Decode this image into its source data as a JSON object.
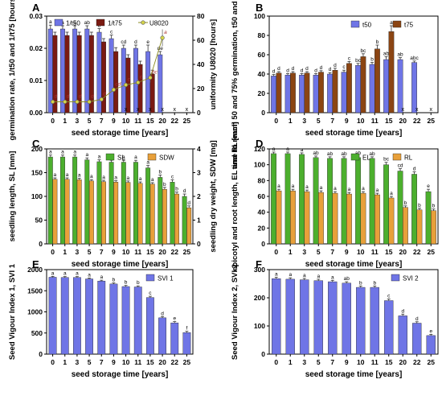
{
  "figure": {
    "x_ticks": [
      "0",
      "1",
      "3",
      "5",
      "7",
      "9",
      "10",
      "11",
      "15",
      "20",
      "22",
      "25"
    ],
    "xlabel": "seed storage time [years]"
  },
  "colors": {
    "blue": "#6f75e6",
    "dark_red": "#7a1a12",
    "brown": "#8b4513",
    "green": "#4caf2e",
    "orange": "#e8a03a",
    "olive_marker": "#d4d44a"
  },
  "chart_data": [
    {
      "panel": "A",
      "type": "bar",
      "categories": [
        "0",
        "1",
        "3",
        "5",
        "7",
        "9",
        "10",
        "11",
        "15",
        "20",
        "22",
        "25"
      ],
      "series": [
        {
          "name": "1/t50",
          "axis": "left",
          "values": [
            0.026,
            0.026,
            0.026,
            0.026,
            0.025,
            0.023,
            0.02,
            0.02,
            0.019,
            0.018,
            0,
            0
          ],
          "errors": [
            0.0012,
            0.001,
            0.001,
            0.001,
            0.0011,
            0.0011,
            0.001,
            0.001,
            0.002,
            0.001,
            0,
            0
          ],
          "letters": [
            "a",
            "a",
            "a",
            "ab",
            "b",
            "c",
            "cd",
            "d",
            "e",
            "de",
            "",
            ""
          ]
        },
        {
          "name": "1/t75",
          "axis": "left",
          "values": [
            0.024,
            0.024,
            0.024,
            0.024,
            0.022,
            0.019,
            0.017,
            0.015,
            0.012,
            0,
            0,
            0
          ],
          "errors": [
            0.001,
            0.001,
            0.001,
            0.001,
            0.001,
            0.0012,
            0.001,
            0.001,
            0.0012,
            0,
            0,
            0
          ],
          "letters": [
            "",
            "",
            "",
            "",
            "",
            "",
            "",
            "",
            "",
            "",
            "",
            ""
          ]
        },
        {
          "name": "U8020",
          "axis": "right",
          "type": "line",
          "values": [
            9,
            9,
            9,
            9,
            11,
            19,
            23,
            25,
            29,
            62,
            null,
            null
          ],
          "errors": [
            1,
            1,
            1,
            1,
            1.5,
            2,
            2.5,
            3,
            4,
            7,
            0,
            0
          ],
          "letters": [
            "d",
            "d",
            "d",
            "d",
            "d",
            "cd",
            "c",
            "c",
            "bc",
            "a",
            "",
            ""
          ]
        }
      ],
      "ylabel": "germination rate, 1/t50 and 1/t75 [hours-1]",
      "y2label": "uniformity U8020 [hours]",
      "ylim": [
        0,
        0.03
      ],
      "y2lim": [
        0,
        80
      ],
      "yticks": [
        "0.00",
        "0.01",
        "0.02",
        "0.03"
      ],
      "y2ticks": [
        "0",
        "20",
        "40",
        "60",
        "80"
      ],
      "legend": [
        "1/t50",
        "1/t75",
        "U8020"
      ],
      "legend_position": "top",
      "x_markers": [
        "x",
        "x",
        "x",
        "x",
        "x",
        "x"
      ]
    },
    {
      "panel": "B",
      "type": "bar",
      "categories": [
        "0",
        "1",
        "3",
        "5",
        "7",
        "9",
        "10",
        "11",
        "15",
        "20",
        "22",
        "25"
      ],
      "series": [
        {
          "name": "t50",
          "values": [
            38,
            39,
            39,
            39,
            40,
            42,
            49,
            50,
            55,
            55,
            52,
            0
          ],
          "errors": [
            1.5,
            1.5,
            1.5,
            1.5,
            1.5,
            2,
            2,
            2,
            3,
            2,
            1.5,
            0
          ],
          "letters": [
            "d",
            "d",
            "d",
            "d",
            "d",
            "c",
            "bc",
            "b",
            "ab",
            "ab",
            "abc",
            ""
          ]
        },
        {
          "name": "t75",
          "values": [
            41,
            41,
            41,
            42,
            44,
            51,
            58,
            66,
            84,
            0,
            0,
            0
          ],
          "errors": [
            1.5,
            1.5,
            1.5,
            1.5,
            2,
            2,
            3,
            4,
            6,
            0,
            0,
            0
          ],
          "letters": [
            "d",
            "d",
            "d",
            "d",
            "d",
            "c",
            "bc",
            "b",
            "a",
            "",
            "",
            ""
          ]
        }
      ],
      "ylabel": "time to reach 50 and 75% germination, t50 and t75 [hours]",
      "ylim": [
        0,
        100
      ],
      "yticks": [
        "0",
        "20",
        "40",
        "60",
        "80",
        "100"
      ],
      "legend": [
        "t50",
        "t75"
      ],
      "legend_position": "top-right",
      "x_markers": [
        "x",
        "x",
        "x"
      ]
    },
    {
      "panel": "C",
      "type": "bar",
      "categories": [
        "0",
        "1",
        "3",
        "5",
        "7",
        "9",
        "10",
        "11",
        "15",
        "20",
        "22",
        "25"
      ],
      "series": [
        {
          "name": "SL",
          "axis": "left",
          "values": [
            183,
            183,
            183,
            177,
            173,
            172,
            172,
            172,
            160,
            140,
            130,
            100
          ],
          "errors": [
            4,
            4,
            4,
            4,
            4,
            4,
            4,
            4,
            5,
            5,
            5,
            5
          ],
          "letters": [
            "a",
            "a",
            "a",
            "a",
            "a",
            "a",
            "a",
            "a",
            "a",
            "b",
            "c",
            "d"
          ]
        },
        {
          "name": "SDW",
          "axis": "right",
          "values": [
            2.72,
            2.72,
            2.7,
            2.65,
            2.62,
            2.6,
            2.59,
            2.55,
            2.52,
            2.3,
            2.1,
            1.52
          ],
          "errors": [
            0.06,
            0.06,
            0.06,
            0.06,
            0.06,
            0.06,
            0.06,
            0.06,
            0.06,
            0.08,
            0.08,
            0.08
          ],
          "letters": [
            "a",
            "a",
            "a",
            "a",
            "a",
            "a",
            "a",
            "a",
            "a",
            "b",
            "b",
            "d"
          ]
        }
      ],
      "ylabel": "seedling length, SL [mm]",
      "y2label": "seedling dry weight, SDW [mg]",
      "ylim": [
        0,
        200
      ],
      "y2lim": [
        0,
        4
      ],
      "yticks": [
        "0",
        "50",
        "100",
        "150",
        "200"
      ],
      "y2ticks": [
        "0",
        "1",
        "2",
        "3",
        "4"
      ],
      "legend": [
        "SL",
        "SDW"
      ],
      "legend_position": "top-right"
    },
    {
      "panel": "D",
      "type": "bar",
      "categories": [
        "0",
        "1",
        "3",
        "5",
        "7",
        "9",
        "10",
        "11",
        "15",
        "20",
        "22",
        "25"
      ],
      "series": [
        {
          "name": "EL",
          "values": [
            114,
            114,
            113,
            109,
            108,
            108,
            109,
            108,
            100,
            92,
            88,
            66
          ],
          "errors": [
            2,
            2,
            2,
            2,
            2,
            2,
            2,
            2,
            3,
            3,
            3,
            3
          ],
          "letters": [
            "a",
            "a",
            "a",
            "ab",
            "ab",
            "ab",
            "ab",
            "ab",
            "bc",
            "cd",
            "d",
            "e"
          ]
        },
        {
          "name": "RL",
          "values": [
            67,
            67,
            66,
            65,
            64,
            63,
            64,
            62,
            58,
            46,
            43,
            42
          ],
          "errors": [
            2,
            2,
            2,
            2,
            2,
            2,
            2,
            2,
            2,
            2,
            2,
            2
          ],
          "letters": [
            "a",
            "a",
            "a",
            "a",
            "a",
            "a",
            "a",
            "a",
            "a",
            "b",
            "b",
            "b"
          ]
        }
      ],
      "ylabel": "epicotyl and root length, EL and RL [mm]",
      "ylim": [
        0,
        120
      ],
      "yticks": [
        "0",
        "20",
        "40",
        "60",
        "80",
        "100",
        "120"
      ],
      "legend": [
        "EL",
        "RL"
      ],
      "legend_position": "top-right"
    },
    {
      "panel": "E",
      "type": "bar",
      "categories": [
        "0",
        "1",
        "3",
        "5",
        "7",
        "9",
        "10",
        "11",
        "15",
        "20",
        "22",
        "25"
      ],
      "series": [
        {
          "name": "SVI 1",
          "values": [
            1820,
            1815,
            1815,
            1780,
            1730,
            1660,
            1600,
            1590,
            1340,
            860,
            740,
            510
          ],
          "errors": [
            20,
            20,
            20,
            20,
            20,
            25,
            25,
            25,
            30,
            30,
            30,
            30
          ],
          "letters": [
            "a",
            "a",
            "a",
            "a",
            "a",
            "b",
            "b",
            "b",
            "c",
            "d",
            "e",
            "f"
          ]
        }
      ],
      "ylabel": "Seed Vigour Index 1, SVI 1",
      "ylim": [
        0,
        2000
      ],
      "yticks": [
        "0",
        "500",
        "1000",
        "1500",
        "2000"
      ],
      "legend": [
        "SVI 1"
      ],
      "legend_position": "top-right"
    },
    {
      "panel": "F",
      "type": "bar",
      "categories": [
        "0",
        "1",
        "3",
        "5",
        "7",
        "9",
        "10",
        "11",
        "15",
        "20",
        "22",
        "25"
      ],
      "series": [
        {
          "name": "SVI 2",
          "values": [
            268,
            266,
            264,
            261,
            257,
            252,
            237,
            237,
            190,
            136,
            110,
            66
          ],
          "errors": [
            5,
            5,
            5,
            5,
            5,
            5,
            5,
            5,
            6,
            6,
            5,
            4
          ],
          "letters": [
            "a",
            "a",
            "a",
            "a",
            "a",
            "ab",
            "b",
            "b",
            "c",
            "d",
            "d",
            "e"
          ]
        }
      ],
      "ylabel": "Seed Vigour Index 2, SVI 2",
      "ylim": [
        0,
        300
      ],
      "yticks": [
        "0",
        "100",
        "200",
        "300"
      ],
      "legend": [
        "SVI 2"
      ],
      "legend_position": "top-right"
    }
  ]
}
